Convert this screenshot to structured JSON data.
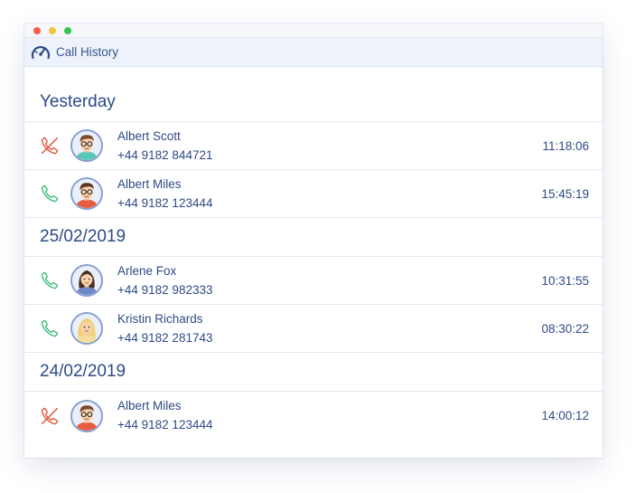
{
  "window": {
    "traffic_lights": [
      "#fa5b4b",
      "#f6c23e",
      "#36c54e"
    ]
  },
  "header": {
    "icon": "speedometer-icon",
    "title": "Call History"
  },
  "groups": [
    {
      "title": "Yesterday",
      "calls": [
        {
          "status": "missed",
          "icon": "missed-call-icon",
          "avatar": "male-glasses-avatar",
          "name": "Albert Scott",
          "phone": "+44 9182 844721",
          "time": "11:18:06"
        },
        {
          "status": "received",
          "icon": "phone-icon",
          "avatar": "male-glasses-avatar",
          "name": "Albert Miles",
          "phone": "+44 9182 123444",
          "time": "15:45:19"
        }
      ]
    },
    {
      "title": "25/02/2019",
      "calls": [
        {
          "status": "received",
          "icon": "phone-icon",
          "avatar": "female-dark-hair-avatar",
          "name": "Arlene Fox",
          "phone": "+44 9182 982333",
          "time": "10:31:55"
        },
        {
          "status": "received",
          "icon": "phone-icon",
          "avatar": "female-blonde-avatar",
          "name": "Kristin Richards",
          "phone": "+44 9182 281743",
          "time": "08:30:22"
        }
      ]
    },
    {
      "title": "24/02/2019",
      "calls": [
        {
          "status": "missed",
          "icon": "missed-call-icon",
          "avatar": "male-glasses-avatar",
          "name": "Albert Miles",
          "phone": "+44 9182 123444",
          "time": "14:00:12"
        }
      ]
    }
  ],
  "colors": {
    "missed": "#e0563c",
    "received": "#3dbd7d",
    "text": "#2f4a85"
  }
}
